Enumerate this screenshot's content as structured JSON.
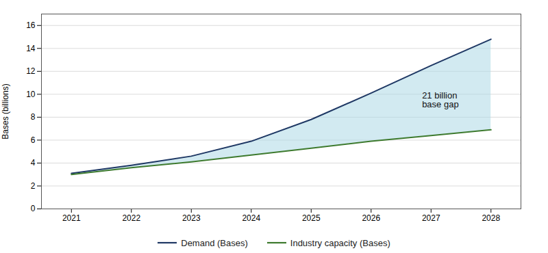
{
  "chart_data": {
    "type": "line",
    "x": [
      2021,
      2022,
      2023,
      2024,
      2025,
      2026,
      2027,
      2028
    ],
    "series": [
      {
        "name": "Demand (Bases)",
        "color": "#1f3864",
        "values": [
          3.1,
          3.8,
          4.6,
          5.9,
          7.8,
          10.1,
          12.5,
          14.8
        ]
      },
      {
        "name": "Industry capacity (Bases)",
        "color": "#3d7a2e",
        "values": [
          3.0,
          3.6,
          4.1,
          4.7,
          5.3,
          5.9,
          6.4,
          6.9
        ]
      }
    ],
    "color": "#add8e6",
    "ylabel": "Bases (billions)",
    "xlim": [
      2020.5,
      2028.5
    ],
    "xticks": [
      2021,
      2022,
      2023,
      2024,
      2025,
      2026,
      2027,
      2028
    ],
    "ylim": [
      0,
      17
    ],
    "yticks": [
      0,
      2,
      4,
      6,
      8,
      10,
      12,
      14,
      16
    ],
    "annotations": [
      {
        "text": "21 billion\nbase gap",
        "x": 2026.85,
        "y": 9.5
      }
    ],
    "grid": true,
    "legend": "bottom"
  }
}
